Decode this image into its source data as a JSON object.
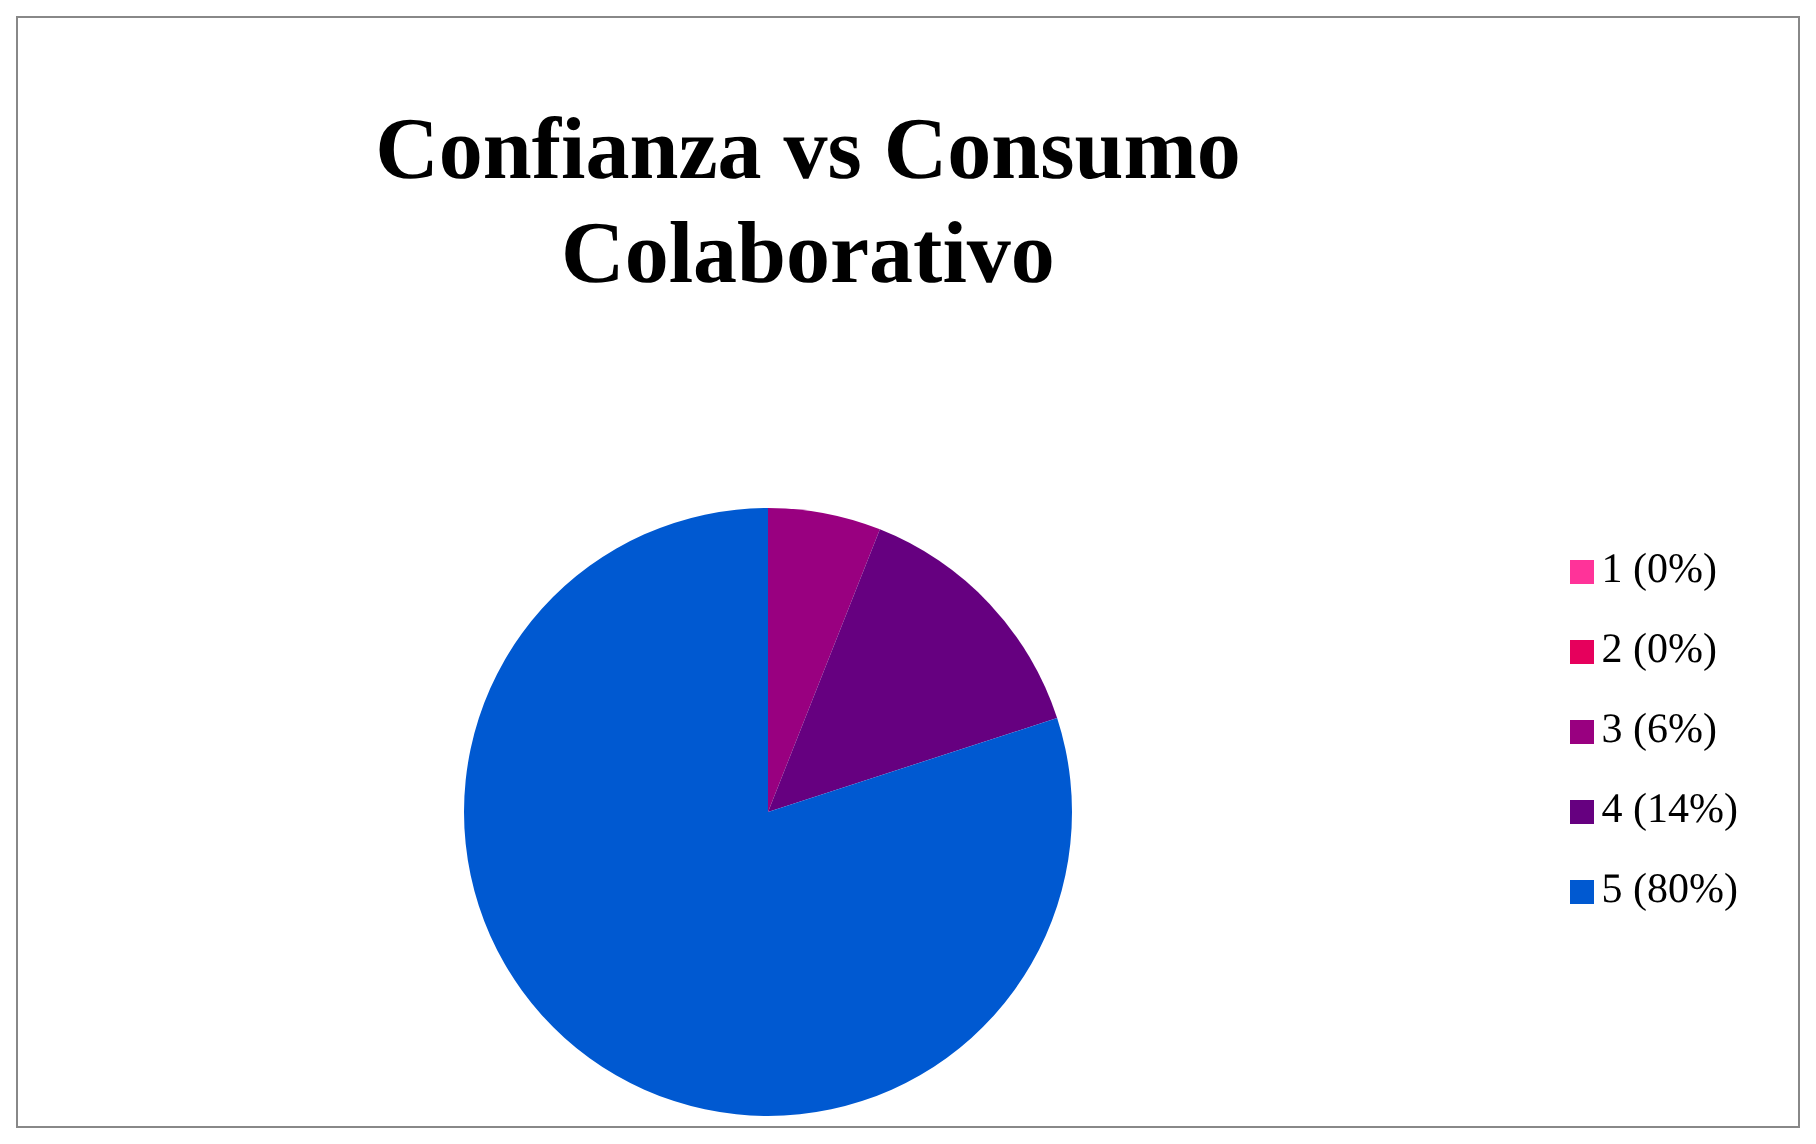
{
  "chart_data": {
    "type": "pie",
    "title": "Confianza vs Consumo Colaborativo",
    "categories": [
      "1 (0%)",
      "2 (0%)",
      "3 (6%)",
      "4 (14%)",
      "5 (80%)"
    ],
    "values": [
      0,
      0,
      6,
      14,
      80
    ],
    "colors": [
      "#ff3399",
      "#e6005c",
      "#990080",
      "#660080",
      "#0059d1"
    ],
    "legend": "right"
  }
}
